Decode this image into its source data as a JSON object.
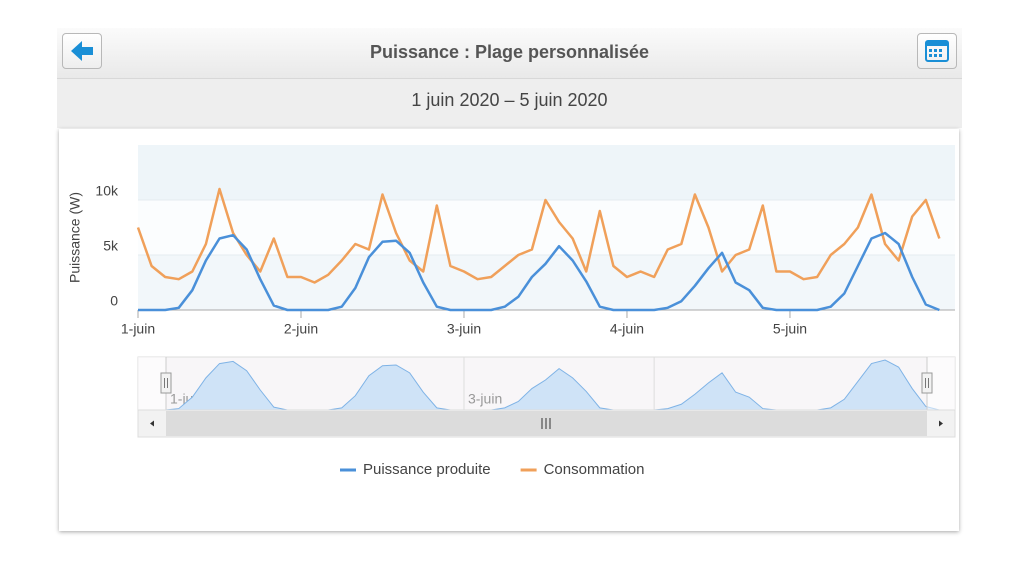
{
  "header": {
    "title": "Puissance : Plage personnalisée",
    "subtitle": "1 juin 2020 – 5 juin 2020"
  },
  "chart_data": {
    "type": "line",
    "y_label": "Puissance (W)",
    "categories": [
      "1-juin",
      null,
      null,
      null,
      null,
      null,
      null,
      null,
      null,
      null,
      null,
      null,
      "2-juin",
      null,
      null,
      null,
      null,
      null,
      null,
      null,
      null,
      null,
      null,
      null,
      "3-juin",
      null,
      null,
      null,
      null,
      null,
      null,
      null,
      null,
      null,
      null,
      null,
      "4-juin",
      null,
      null,
      null,
      null,
      null,
      null,
      null,
      null,
      null,
      null,
      null,
      "5-juin",
      null,
      null,
      null,
      null,
      null,
      null,
      null,
      null,
      null,
      null,
      null
    ],
    "series": [
      {
        "name": "Puissance produite",
        "color": "#4a90d9",
        "values": [
          0,
          0,
          0,
          200,
          1800,
          4500,
          6500,
          6800,
          5500,
          2800,
          400,
          0,
          0,
          0,
          0,
          300,
          2000,
          4800,
          6200,
          6300,
          5200,
          2500,
          300,
          0,
          0,
          0,
          0,
          300,
          1200,
          3000,
          4200,
          5800,
          4500,
          2600,
          300,
          0,
          0,
          0,
          0,
          200,
          800,
          2200,
          3800,
          5200,
          2500,
          1800,
          200,
          0,
          0,
          0,
          0,
          300,
          1500,
          4000,
          6500,
          7000,
          6000,
          3000,
          500,
          0
        ]
      },
      {
        "name": "Consommation",
        "color": "#f0a05a",
        "values": [
          7500,
          4000,
          3000,
          2800,
          3500,
          6000,
          11000,
          7000,
          5000,
          3500,
          6500,
          3000,
          3000,
          2500,
          3200,
          4500,
          6000,
          5500,
          10500,
          7000,
          4500,
          3500,
          9500,
          4000,
          3500,
          2800,
          3000,
          4000,
          5000,
          5500,
          10000,
          8000,
          6500,
          3500,
          9000,
          4000,
          3000,
          3500,
          3000,
          5500,
          6000,
          10500,
          7500,
          3500,
          5000,
          5500,
          9500,
          3500,
          3500,
          2800,
          3000,
          5000,
          6000,
          7500,
          10500,
          6000,
          4500,
          8500,
          10000,
          6500
        ]
      }
    ],
    "ylim": [
      0,
      15000
    ],
    "yticks": [
      0,
      {
        "value": 5000,
        "label": "5k"
      },
      {
        "value": 10000,
        "label": "10k"
      }
    ],
    "legend": "bottom"
  }
}
